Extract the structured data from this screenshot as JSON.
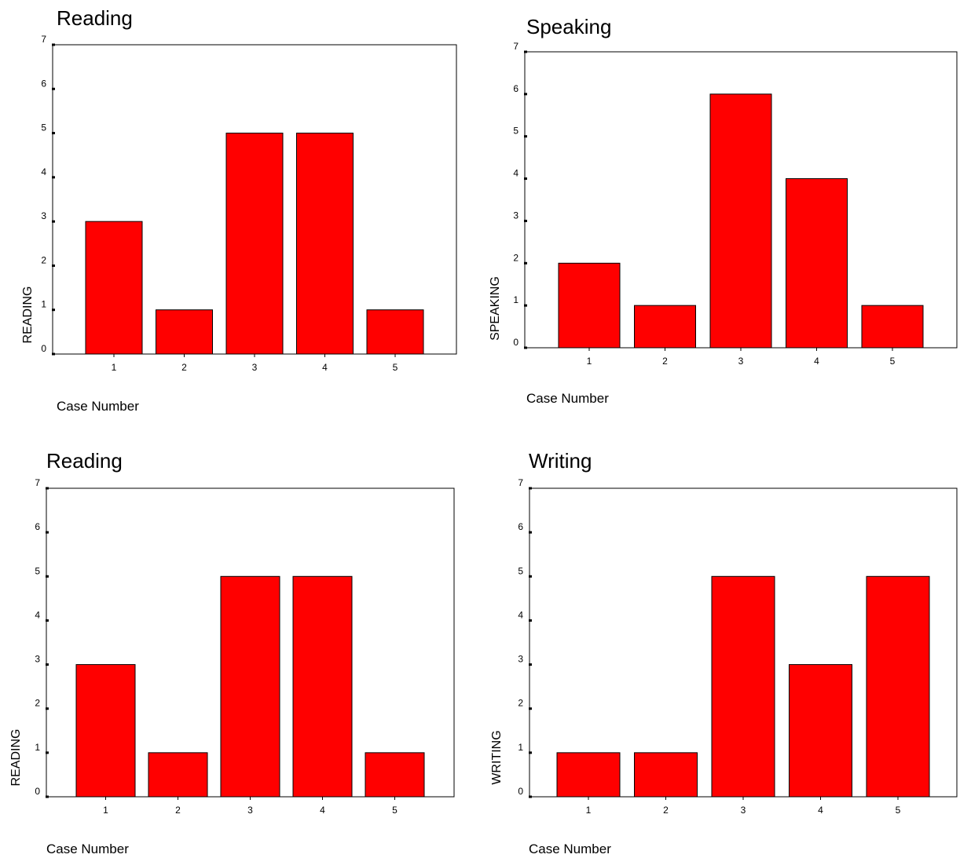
{
  "chart_data": [
    {
      "type": "bar",
      "title": "Reading",
      "xlabel": "Case Number",
      "ylabel": "READING",
      "categories": [
        "1",
        "2",
        "3",
        "4",
        "5"
      ],
      "values": [
        3,
        1,
        5,
        5,
        1
      ],
      "ylim": [
        0,
        7
      ],
      "yticks": [
        0,
        1,
        2,
        3,
        4,
        5,
        6,
        7
      ],
      "grid": false,
      "bar_color": "#ff0000"
    },
    {
      "type": "bar",
      "title": "Speaking",
      "xlabel": "Case Number",
      "ylabel": "SPEAKING",
      "categories": [
        "1",
        "2",
        "3",
        "4",
        "5"
      ],
      "values": [
        2,
        1,
        6,
        4,
        1
      ],
      "ylim": [
        0,
        7
      ],
      "yticks": [
        0,
        1,
        2,
        3,
        4,
        5,
        6,
        7
      ],
      "grid": false,
      "bar_color": "#ff0000"
    },
    {
      "type": "bar",
      "title": "Reading",
      "xlabel": "Case Number",
      "ylabel": "READING",
      "categories": [
        "1",
        "2",
        "3",
        "4",
        "5"
      ],
      "values": [
        3,
        1,
        5,
        5,
        1
      ],
      "ylim": [
        0,
        7
      ],
      "yticks": [
        0,
        1,
        2,
        3,
        4,
        5,
        6,
        7
      ],
      "grid": false,
      "bar_color": "#ff0000"
    },
    {
      "type": "bar",
      "title": "Writing",
      "xlabel": "Case Number",
      "ylabel": "WRITING",
      "categories": [
        "1",
        "2",
        "3",
        "4",
        "5"
      ],
      "values": [
        1,
        1,
        5,
        3,
        5
      ],
      "ylim": [
        0,
        7
      ],
      "yticks": [
        0,
        1,
        2,
        3,
        4,
        5,
        6,
        7
      ],
      "grid": false,
      "bar_color": "#ff0000"
    }
  ]
}
